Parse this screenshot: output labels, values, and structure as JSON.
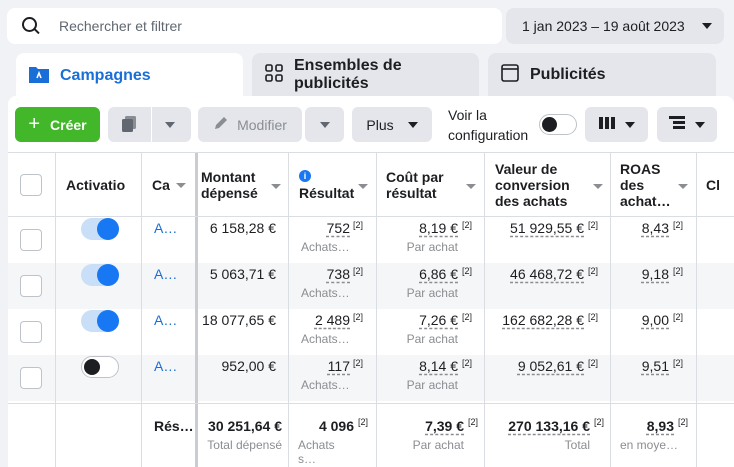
{
  "search": {
    "placeholder": "Rechercher et filtrer"
  },
  "date_range": "1 jan 2023 – 19 août 2023",
  "tabs": [
    {
      "label": "Campagnes"
    },
    {
      "label": "Ensembles de publicités"
    },
    {
      "label": "Publicités"
    }
  ],
  "toolbar": {
    "create_label": "Créer",
    "modify_label": "Modifier",
    "plus_label": "Plus",
    "config_label": "Voir la configuration"
  },
  "table": {
    "headers": {
      "activation": "Activatio",
      "campaign": "Ca",
      "spent": "Montant dépensé",
      "result": "Résultat",
      "cost": "Coût par résultat",
      "value": "Valeur de conversion des achats",
      "roas": "ROAS des achat…",
      "cl": "Cl"
    },
    "rows": [
      {
        "on": true,
        "name": "A…",
        "spent": "6 158,28 €",
        "result": "752",
        "result_sub": "Achats…",
        "cost": "8,19 €",
        "cost_sub": "Par achat",
        "value": "51 929,55 €",
        "roas": "8,43"
      },
      {
        "on": true,
        "name": "A…",
        "spent": "5 063,71 €",
        "result": "738",
        "result_sub": "Achats…",
        "cost": "6,86 €",
        "cost_sub": "Par achat",
        "value": "46 468,72 €",
        "roas": "9,18"
      },
      {
        "on": true,
        "name": "A…",
        "spent": "18 077,65 €",
        "result": "2 489",
        "result_sub": "Achats…",
        "cost": "7,26 €",
        "cost_sub": "Par achat",
        "value": "162 682,28 €",
        "roas": "9,00"
      },
      {
        "on": false,
        "name": "A…",
        "spent": "952,00 €",
        "result": "117",
        "result_sub": "Achats…",
        "cost": "8,14 €",
        "cost_sub": "Par achat",
        "value": "9 052,61 €",
        "roas": "9,51"
      }
    ],
    "footnote": "[2]",
    "totals": {
      "label": "Rés…",
      "spent": "30 251,64 €",
      "spent_sub": "Total dépensé",
      "result": "4 096",
      "result_sub": "Achats s…",
      "cost": "7,39 €",
      "cost_sub": "Par achat",
      "value": "270 133,16 €",
      "value_sub": "Total",
      "roas": "8,93",
      "roas_sub": "en moye…"
    }
  },
  "colors": {
    "accent": "#1877f2",
    "create": "#42b72a",
    "link": "#1a6ed8"
  }
}
